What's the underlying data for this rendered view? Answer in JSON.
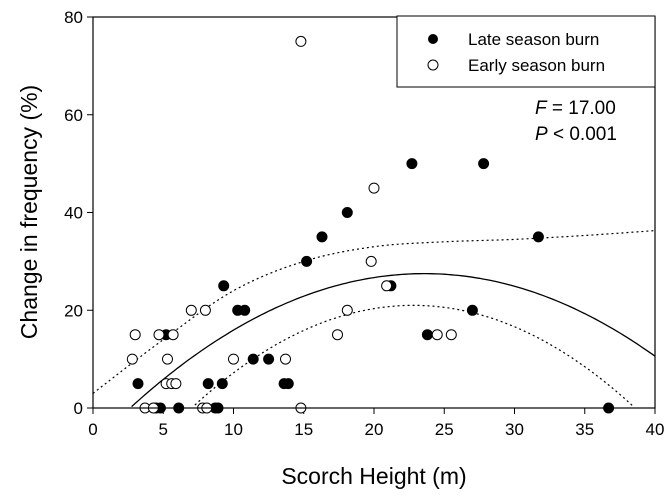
{
  "chart_data": {
    "type": "scatter",
    "xlabel": "Scorch Height (m)",
    "ylabel": "Change in frequency (%)",
    "xlim": [
      0,
      40
    ],
    "ylim": [
      0,
      80
    ],
    "xticks": [
      "0",
      "5",
      "10",
      "15",
      "20",
      "25",
      "30",
      "35",
      "40"
    ],
    "yticks": [
      "0",
      "20",
      "40",
      "60",
      "80"
    ],
    "grid": false,
    "legend_position": "top-right",
    "annotation": {
      "f_label": "F",
      "f_value": "= 17.00",
      "p_label": "P",
      "p_value": "< 0.001"
    },
    "series": [
      {
        "name": "Late season burn",
        "marker": "filled-circle",
        "color": "#000000",
        "points": [
          [
            3.2,
            5
          ],
          [
            4.5,
            0
          ],
          [
            4.8,
            0
          ],
          [
            5.2,
            15
          ],
          [
            6.1,
            0
          ],
          [
            8.2,
            5
          ],
          [
            8.7,
            0
          ],
          [
            8.9,
            0
          ],
          [
            9.2,
            5
          ],
          [
            9.3,
            25
          ],
          [
            10.3,
            20
          ],
          [
            10.8,
            20
          ],
          [
            11.4,
            10
          ],
          [
            12.5,
            10
          ],
          [
            13.6,
            5
          ],
          [
            13.9,
            5
          ],
          [
            15.2,
            30
          ],
          [
            16.3,
            35
          ],
          [
            18.1,
            40
          ],
          [
            21.2,
            25
          ],
          [
            22.7,
            50
          ],
          [
            23.8,
            15
          ],
          [
            27.0,
            20
          ],
          [
            27.8,
            50
          ],
          [
            31.7,
            35
          ],
          [
            36.7,
            0
          ]
        ]
      },
      {
        "name": "Early season burn",
        "marker": "open-circle",
        "color": "#000000",
        "points": [
          [
            2.8,
            10
          ],
          [
            3.0,
            15
          ],
          [
            3.7,
            0
          ],
          [
            4.3,
            0
          ],
          [
            4.7,
            15
          ],
          [
            5.2,
            5
          ],
          [
            5.3,
            10
          ],
          [
            5.6,
            5
          ],
          [
            5.7,
            15
          ],
          [
            5.9,
            5
          ],
          [
            7.0,
            20
          ],
          [
            7.8,
            0
          ],
          [
            8.0,
            20
          ],
          [
            8.1,
            0
          ],
          [
            10.0,
            10
          ],
          [
            13.7,
            10
          ],
          [
            14.8,
            0
          ],
          [
            14.8,
            75
          ],
          [
            17.4,
            15
          ],
          [
            18.1,
            20
          ],
          [
            19.8,
            30
          ],
          [
            20.0,
            45
          ],
          [
            20.9,
            25
          ],
          [
            24.5,
            15
          ],
          [
            25.5,
            15
          ]
        ]
      }
    ],
    "fit": {
      "type": "quadratic",
      "coefficients": [
        -7.37,
        2.957,
        -0.0627
      ],
      "lower_ci": {
        "vertex_x": 22.8,
        "vertex_y": 21,
        "a": -0.0843
      },
      "upper_ci": [
        [
          0,
          3
        ],
        [
          5,
          14
        ],
        [
          10,
          24
        ],
        [
          15,
          30
        ],
        [
          20,
          33
        ],
        [
          25,
          34
        ],
        [
          30,
          34.5
        ],
        [
          35,
          35.3
        ],
        [
          40,
          36.3
        ]
      ]
    }
  }
}
